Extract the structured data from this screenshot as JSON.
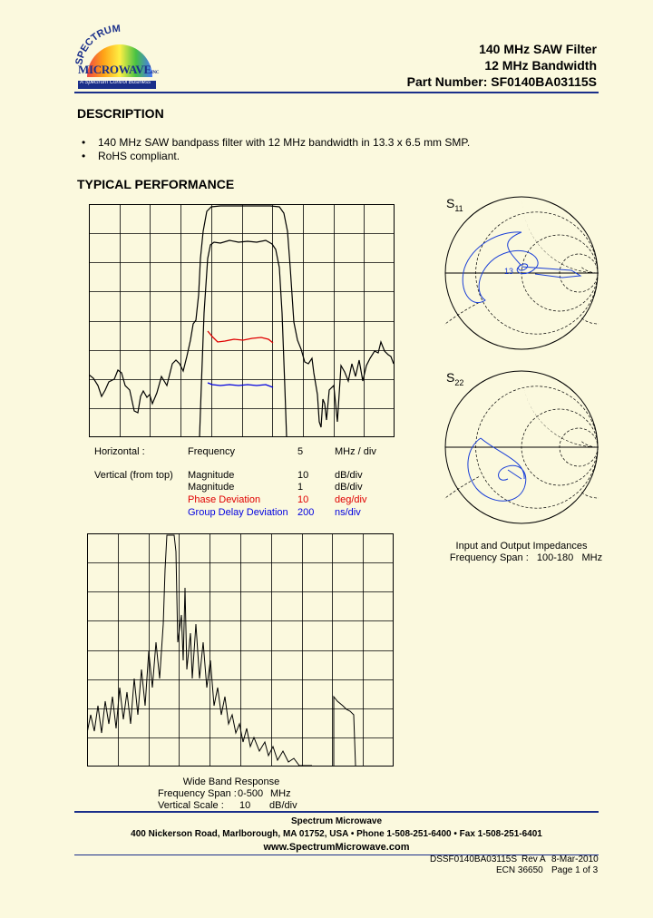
{
  "logo": {
    "arc_text": "SPECTRUM",
    "name": "MICROWAVE",
    "inc": "INC",
    "tagline": "A Spectrum Control Business"
  },
  "header": {
    "line1": "140 MHz SAW Filter",
    "line2": "12 MHz Bandwidth",
    "line3": "Part Number: SF0140BA03115S"
  },
  "description": {
    "heading": "DESCRIPTION",
    "bullets": [
      "140 MHz SAW bandpass filter with 12 MHz bandwidth in 13.3 x 6.5 mm SMP.",
      "RoHS compliant."
    ]
  },
  "performance": {
    "heading": "TYPICAL PERFORMANCE",
    "settings": {
      "horizontal": {
        "label": "Horizontal :",
        "name": "Frequency",
        "value": "5",
        "unit": "MHz / div"
      },
      "vertical_label": "Vertical (from top)",
      "rows": [
        {
          "name": "Magnitude",
          "value": "10",
          "unit": "dB/div",
          "color": "#000000"
        },
        {
          "name": "Magnitude",
          "value": "1",
          "unit": "dB/div",
          "color": "#000000"
        },
        {
          "name": "Phase Deviation",
          "value": "10",
          "unit": "deg/div",
          "color": "#e00000"
        },
        {
          "name": "Group Delay Deviation",
          "value": "200",
          "unit": "ns/div",
          "color": "#0000e0"
        }
      ]
    },
    "smith": {
      "s11": {
        "label": "S",
        "sub": "11"
      },
      "s22": {
        "label": "S",
        "sub": "22"
      },
      "caption1": "Input and Output Impedances",
      "caption2": "Frequency Span :   100-180   MHz"
    },
    "wideband": {
      "caption1": "Wide Band Response",
      "span_label": "Frequency Span :",
      "span_value": "0-500",
      "span_unit": "MHz",
      "scale_label": "Vertical Scale :",
      "scale_value": "10",
      "scale_unit": "dB/div"
    }
  },
  "footer": {
    "company": "Spectrum Microwave",
    "address": "400 Nickerson Road, Marlborough, MA 01752, USA  •  Phone 1-508-251-6400  •  Fax 1-508-251-6401",
    "website": "www.SpectrumMicrowave.com",
    "doc_id": "DSSF0140BA03115S",
    "rev": "Rev A",
    "date": "8-Mar-2010",
    "ecn": "ECN 36650",
    "page": "Page 1 of 3"
  },
  "colors": {
    "brand": "#1a2f8a",
    "phase": "#e00000",
    "group_delay": "#0000e0",
    "smith": "#1a3fd8",
    "background": "#fbf9de"
  }
}
